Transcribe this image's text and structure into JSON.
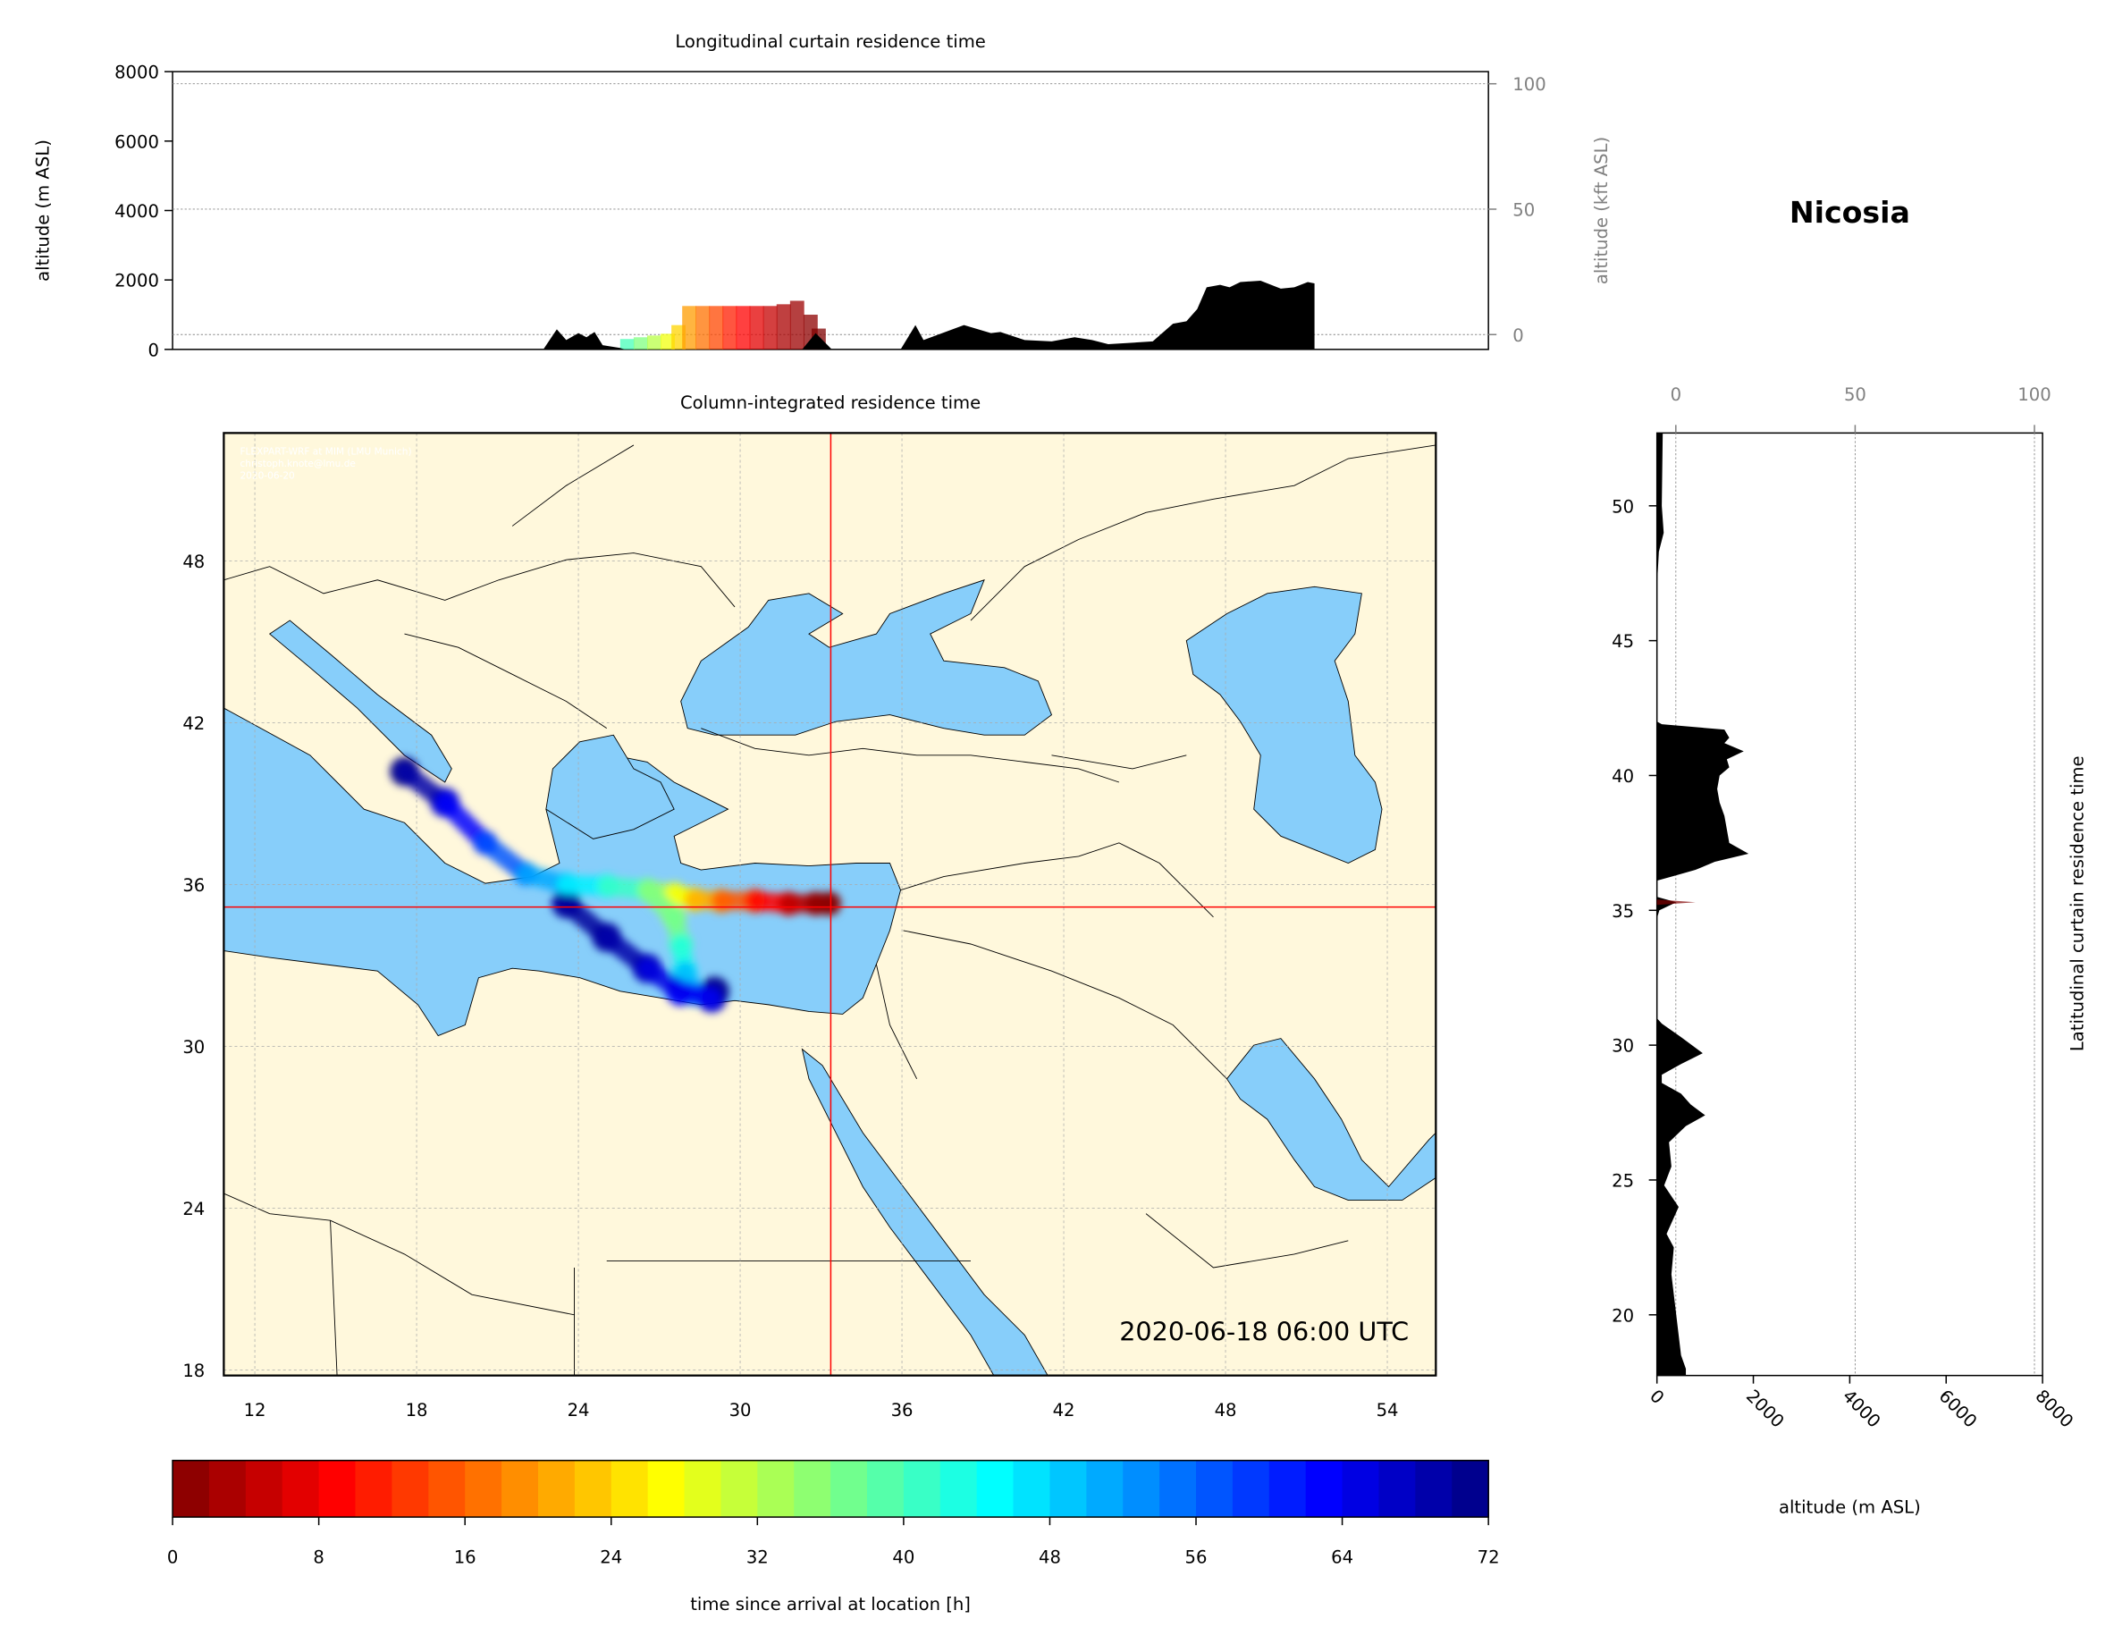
{
  "title": "Nicosia",
  "timestamp": "2020-06-18 06:00 UTC",
  "credits": [
    "FLEXPART-WRF at MIM (LMU Munich)",
    "christoph.knote@lmu.de",
    "2020-06-20"
  ],
  "colors": {
    "land": "#fff8dc",
    "sea": "#87cefa",
    "terrain": "#000000",
    "crosshair": "#ff0000"
  },
  "chart_data": [
    {
      "id": "longitudinal",
      "type": "area",
      "title": "Longitudinal curtain residence time",
      "ylabel": "altitude (m ASL)",
      "ylabel_right": "altitude (kft ASL)",
      "ylim": [
        0,
        8000
      ],
      "yticks": [
        0,
        2000,
        4000,
        6000,
        8000
      ],
      "yticks_right": [
        0,
        50,
        100
      ],
      "xlim": [
        9,
        57.75
      ],
      "grid": true,
      "terrain": {
        "lon": [
          22.7,
          23.2,
          23.55,
          24.0,
          24.3,
          24.6,
          24.9,
          25.55,
          25.7,
          32.3,
          32.8,
          33.4,
          35.95,
          36.5,
          36.8,
          38.3,
          39.3,
          39.65,
          40.55,
          41.55,
          42.4,
          43.05,
          43.65,
          45.3,
          46.05,
          46.55,
          46.95,
          47.3,
          47.8,
          48.15,
          48.55,
          49.3,
          50.05,
          50.55,
          51.05,
          51.3,
          51.3
        ],
        "altitude": [
          0,
          580,
          270,
          470,
          350,
          500,
          120,
          40,
          0,
          0,
          470,
          0,
          0,
          700,
          270,
          700,
          470,
          500,
          270,
          230,
          350,
          270,
          150,
          230,
          740,
          810,
          1160,
          1790,
          1860,
          1790,
          1940,
          1980,
          1750,
          1790,
          1940,
          1900,
          0
        ]
      },
      "residence": [
        {
          "lon": 25.8,
          "top": 300,
          "hours": 40
        },
        {
          "lon": 26.3,
          "top": 350,
          "hours": 36
        },
        {
          "lon": 26.8,
          "top": 400,
          "hours": 32
        },
        {
          "lon": 27.3,
          "top": 450,
          "hours": 28
        },
        {
          "lon": 27.7,
          "top": 700,
          "hours": 24
        },
        {
          "lon": 28.1,
          "top": 1250,
          "hours": 20
        },
        {
          "lon": 28.6,
          "top": 1250,
          "hours": 17
        },
        {
          "lon": 29.1,
          "top": 1250,
          "hours": 14
        },
        {
          "lon": 29.6,
          "top": 1250,
          "hours": 11
        },
        {
          "lon": 30.1,
          "top": 1250,
          "hours": 9
        },
        {
          "lon": 30.6,
          "top": 1250,
          "hours": 7
        },
        {
          "lon": 31.1,
          "top": 1250,
          "hours": 5
        },
        {
          "lon": 31.6,
          "top": 1300,
          "hours": 3
        },
        {
          "lon": 32.1,
          "top": 1400,
          "hours": 2
        },
        {
          "lon": 32.6,
          "top": 1000,
          "hours": 1
        },
        {
          "lon": 32.9,
          "top": 600,
          "hours": 0
        }
      ]
    },
    {
      "id": "map",
      "type": "heatmap",
      "title": "Column-integrated residence time",
      "xticks": [
        12,
        18,
        24,
        30,
        36,
        42,
        48,
        54
      ],
      "yticks": [
        18,
        24,
        30,
        36,
        42,
        48
      ],
      "xlim": [
        10.85,
        55.8
      ],
      "ylim": [
        17.75,
        52.7
      ],
      "grid": true,
      "location": {
        "lon": 33.36,
        "lat": 35.17
      },
      "plume": [
        {
          "lon": 17.55,
          "lat": 40.2,
          "hours": 72
        },
        {
          "lon": 19.05,
          "lat": 39.05,
          "hours": 66
        },
        {
          "lon": 20.55,
          "lat": 37.55,
          "hours": 60
        },
        {
          "lon": 22.05,
          "lat": 36.4,
          "hours": 54
        },
        {
          "lon": 23.55,
          "lat": 36.0,
          "hours": 48
        },
        {
          "lon": 25.05,
          "lat": 35.95,
          "hours": 44
        },
        {
          "lon": 26.55,
          "lat": 35.8,
          "hours": 38
        },
        {
          "lon": 27.55,
          "lat": 35.65,
          "hours": 30
        },
        {
          "lon": 28.3,
          "lat": 35.45,
          "hours": 24
        },
        {
          "lon": 29.3,
          "lat": 35.4,
          "hours": 18
        },
        {
          "lon": 30.55,
          "lat": 35.4,
          "hours": 12
        },
        {
          "lon": 31.8,
          "lat": 35.3,
          "hours": 6
        },
        {
          "lon": 32.8,
          "lat": 35.3,
          "hours": 2
        },
        {
          "lon": 33.3,
          "lat": 35.3,
          "hours": 0
        },
        {
          "lon": 27.55,
          "lat": 34.8,
          "hours": 34
        },
        {
          "lon": 27.8,
          "lat": 33.8,
          "hours": 40
        },
        {
          "lon": 27.95,
          "lat": 32.8,
          "hours": 46
        },
        {
          "lon": 28.3,
          "lat": 31.95,
          "hours": 54
        },
        {
          "lon": 28.95,
          "lat": 31.8,
          "hours": 66
        },
        {
          "lon": 29.05,
          "lat": 32.05,
          "hours": 72
        },
        {
          "lon": 23.55,
          "lat": 35.3,
          "hours": 70
        },
        {
          "lon": 25.05,
          "lat": 34.05,
          "hours": 70
        },
        {
          "lon": 26.55,
          "lat": 32.9,
          "hours": 68
        },
        {
          "lon": 27.8,
          "lat": 32.05,
          "hours": 62
        }
      ]
    },
    {
      "id": "latitudinal",
      "type": "area",
      "ylabel": "Latitudinal curtain residence time",
      "xlabel": "altitude (m ASL)",
      "xlim": [
        0,
        8000
      ],
      "xticks": [
        0,
        2000,
        4000,
        6000,
        8000
      ],
      "xticks_top": [
        0,
        50,
        100
      ],
      "ylim": [
        17.75,
        52.7
      ],
      "yticks": [
        20,
        25,
        30,
        35,
        40,
        45,
        50
      ],
      "grid": true,
      "terrain": {
        "lat": [
          52.7,
          50,
          49,
          48.3,
          47,
          42,
          41.9,
          41.7,
          41.4,
          41.2,
          40.9,
          40.6,
          40.3,
          40.0,
          39.5,
          39.0,
          38.5,
          38.0,
          37.5,
          37.1,
          36.8,
          36.5,
          36.3,
          36.1,
          35.5,
          35.3,
          35.0,
          34.7,
          31,
          30.8,
          30.3,
          29.7,
          29.3,
          28.9,
          28.6,
          28.2,
          27.8,
          27.4,
          27.0,
          26.4,
          25.5,
          24.8,
          24.0,
          23.0,
          22.5,
          21.5,
          20,
          18.5,
          18,
          17.75
        ],
        "altitude": [
          120,
          100,
          140,
          40,
          0,
          0,
          100,
          1400,
          1500,
          1400,
          1800,
          1450,
          1500,
          1300,
          1250,
          1300,
          1400,
          1450,
          1500,
          1900,
          1200,
          800,
          400,
          0,
          0,
          400,
          50,
          0,
          0,
          100,
          500,
          950,
          500,
          100,
          100,
          500,
          700,
          1000,
          600,
          250,
          300,
          150,
          450,
          200,
          350,
          300,
          400,
          500,
          600,
          600
        ]
      },
      "residence": [
        {
          "lat": 35.3,
          "top": 800,
          "hours": 0
        }
      ]
    },
    {
      "id": "colorbar",
      "type": "colorbar",
      "label": "time since arrival at location [h]",
      "range": [
        0,
        72
      ],
      "ticks": [
        0,
        8,
        16,
        24,
        32,
        40,
        48,
        56,
        64,
        72
      ],
      "cmap": "jet_r"
    }
  ]
}
